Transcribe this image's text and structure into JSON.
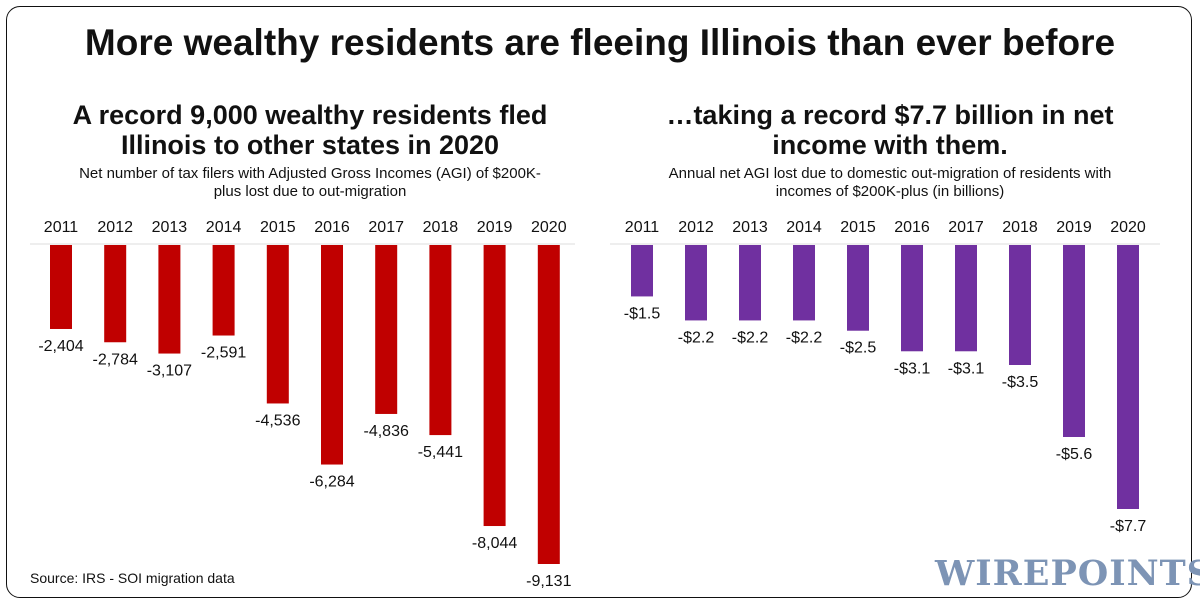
{
  "title": "More wealthy residents are fleeing Illinois than ever before",
  "source": "Source: IRS - SOI migration data",
  "logo_text": "WIREPOINTS",
  "chart_data": [
    {
      "type": "bar",
      "title": "A record 9,000 wealthy residents fled Illinois to other states in 2020",
      "subtitle": "Net number of tax filers with Adjusted Gross Incomes (AGI) of $200K-plus lost due to out-migration",
      "categories": [
        "2011",
        "2012",
        "2013",
        "2014",
        "2015",
        "2016",
        "2017",
        "2018",
        "2019",
        "2020"
      ],
      "values": [
        -2404,
        -2784,
        -3107,
        -2591,
        -4536,
        -6284,
        -4836,
        -5441,
        -8044,
        -9131
      ],
      "labels": [
        "-2,404",
        "-2,784",
        "-3,107",
        "-2,591",
        "-4,536",
        "-6,284",
        "-4,836",
        "-5,441",
        "-8,044",
        "-9,131"
      ],
      "color": "#c00000",
      "grid": false
    },
    {
      "type": "bar",
      "title": "…taking a record $7.7 billion in net income with them.",
      "subtitle": "Annual net AGI lost due to domestic out-migration of residents with incomes of $200K-plus (in billions)",
      "categories": [
        "2011",
        "2012",
        "2013",
        "2014",
        "2015",
        "2016",
        "2017",
        "2018",
        "2019",
        "2020"
      ],
      "values": [
        -1.5,
        -2.2,
        -2.2,
        -2.2,
        -2.5,
        -3.1,
        -3.1,
        -3.5,
        -5.6,
        -7.7
      ],
      "labels": [
        "-$1.5",
        "-$2.2",
        "-$2.2",
        "-$2.2",
        "-$2.5",
        "-$3.1",
        "-$3.1",
        "-$3.5",
        "-$5.6",
        "-$7.7"
      ],
      "color": "#7030a0",
      "grid": false
    }
  ]
}
